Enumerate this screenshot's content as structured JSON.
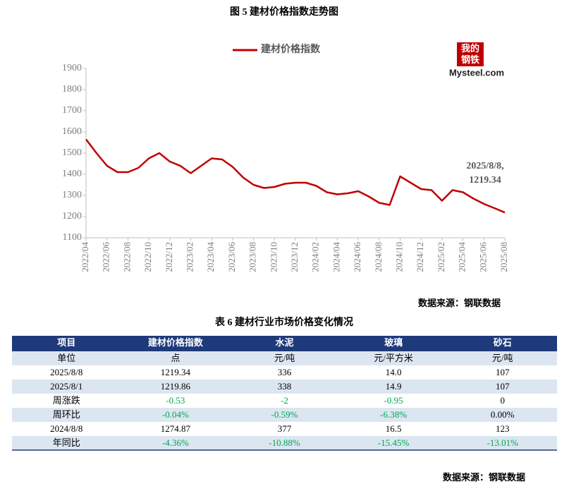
{
  "chart_data": {
    "type": "line",
    "title": "图 5  建材价格指数走势图",
    "categories": [
      "2022/04",
      null,
      "2022/06",
      null,
      "2022/08",
      null,
      "2022/10",
      null,
      "2022/12",
      null,
      "2023/02",
      null,
      "2023/04",
      null,
      "2023/06",
      null,
      "2023/08",
      null,
      "2023/10",
      null,
      "2023/12",
      null,
      "2024/02",
      null,
      "2024/04",
      null,
      "2024/06",
      null,
      "2024/08",
      null,
      "2024/10",
      null,
      "2024/12",
      null,
      "2025/02",
      null,
      "2025/04",
      null,
      "2025/06",
      null,
      "2025/08"
    ],
    "series": [
      {
        "name": "建材价格指数",
        "color": "#c00000",
        "values": [
          1565,
          1500,
          1440,
          1410,
          1410,
          1430,
          1475,
          1500,
          1460,
          1440,
          1405,
          1440,
          1475,
          1470,
          1435,
          1385,
          1350,
          1335,
          1340,
          1355,
          1360,
          1360,
          1345,
          1315,
          1305,
          1310,
          1320,
          1295,
          1265,
          1255,
          1390,
          1360,
          1330,
          1325,
          1275,
          1325,
          1315,
          1285,
          1260,
          1240,
          1219.34
        ]
      }
    ],
    "ylim": [
      1100,
      1900
    ],
    "yticks": [
      1100,
      1200,
      1300,
      1400,
      1500,
      1600,
      1700,
      1800,
      1900
    ],
    "annotation": [
      "2025/8/8,",
      "1219.34"
    ],
    "logo": {
      "top": "我的",
      "bottom": "钢铁",
      "site": "Mysteel.com"
    },
    "source": "数据来源：钢联数据"
  },
  "table": {
    "title": "表 6 建材行业市场价格变化情况",
    "header": [
      "项目",
      "建材价格指数",
      "水泥",
      "玻璃",
      "砂石"
    ],
    "rows": [
      [
        "单位",
        "点",
        "元/吨",
        "元/平方米",
        "元/吨"
      ],
      [
        "2025/8/8",
        "1219.34",
        "336",
        "14.0",
        "107"
      ],
      [
        "2025/8/1",
        "1219.86",
        "338",
        "14.9",
        "107"
      ],
      [
        "周涨跌",
        "-0.53",
        "-2",
        "-0.95",
        "0"
      ],
      [
        "周环比",
        "-0.04%",
        "-0.59%",
        "-6.38%",
        "0.00%"
      ],
      [
        "2024/8/8",
        "1274.87",
        "377",
        "16.5",
        "123"
      ],
      [
        "年同比",
        "-4.36%",
        "-10.88%",
        "-15.45%",
        "-13.01%"
      ]
    ],
    "source": "数据来源：钢联数据"
  }
}
